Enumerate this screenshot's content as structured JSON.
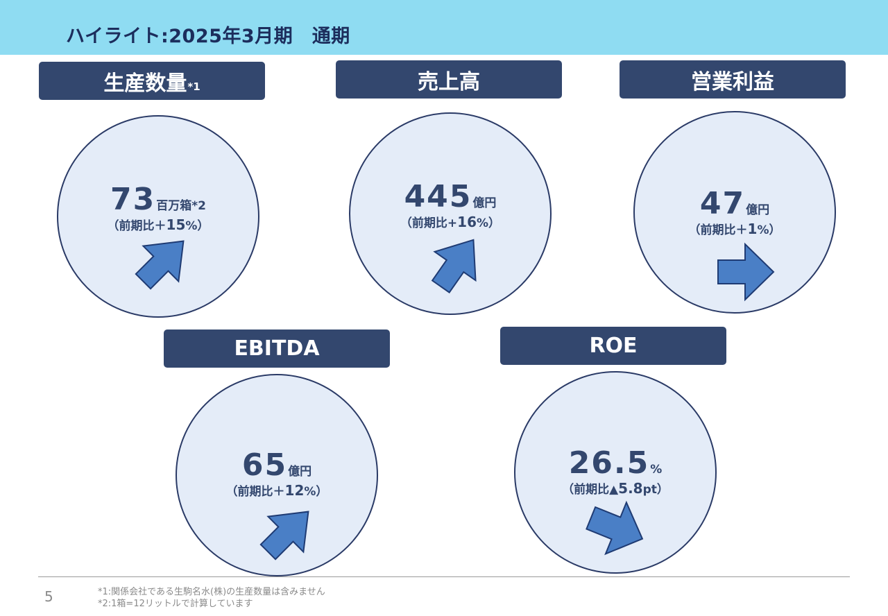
{
  "header": {
    "title": "ハイライト:2025年3月期　通期"
  },
  "colors": {
    "header_bg": "#8fdcf2",
    "label_bg": "#33476e",
    "circle_fill": "#e4ecf8",
    "arrow": "#4a7fc6"
  },
  "metrics": [
    {
      "label": "生産数量",
      "label_sup": "*1",
      "value": "73",
      "unit": "百万箱*2",
      "compare_prefix": "（前期比＋",
      "compare_num": "15",
      "compare_suffix": "%）",
      "arrow_icon": "arrow-up-right-icon"
    },
    {
      "label": "売上高",
      "label_sup": "",
      "value": "445",
      "unit": "億円",
      "compare_prefix": "（前期比+",
      "compare_num": "16",
      "compare_suffix": "%）",
      "arrow_icon": "arrow-up-right-icon"
    },
    {
      "label": "営業利益",
      "label_sup": "",
      "value": "47",
      "unit": "億円",
      "compare_prefix": "（前期比＋",
      "compare_num": "1",
      "compare_suffix": "%）",
      "arrow_icon": "arrow-right-icon"
    },
    {
      "label": "EBITDA",
      "label_sup": "",
      "value": "65",
      "unit": "億円",
      "compare_prefix": "（前期比＋",
      "compare_num": "12",
      "compare_suffix": "%）",
      "arrow_icon": "arrow-up-right-icon"
    },
    {
      "label": "ROE",
      "label_sup": "",
      "value": "26.5",
      "unit": "%",
      "compare_prefix": "（前期比▲",
      "compare_num": "5.8",
      "compare_suffix": "pt）",
      "arrow_icon": "arrow-down-right-icon"
    }
  ],
  "footer": {
    "page_number": "5",
    "notes": [
      "*1:関係会社である生駒名水(株)の生産数量は含みません",
      "*2:1箱=12リットルで計算しています"
    ]
  }
}
